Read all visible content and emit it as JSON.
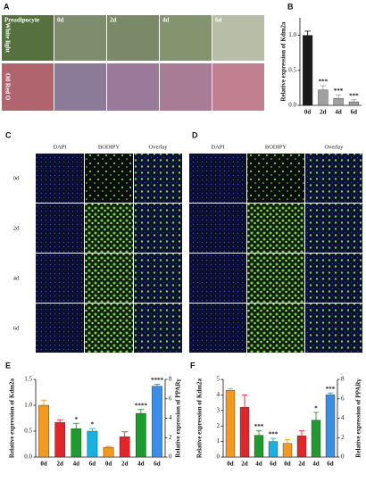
{
  "panel_a": {
    "label": "A",
    "columns": [
      "Preadipocyte",
      "0d",
      "2d",
      "4d",
      "6d"
    ],
    "rows": [
      "White light",
      "Oil Red O"
    ]
  },
  "panel_c": {
    "label": "C",
    "columns": [
      "DAPI",
      "BODIPY",
      "Overlay"
    ],
    "rows": [
      "0d",
      "2d",
      "4d",
      "6d"
    ]
  },
  "panel_d": {
    "label": "D",
    "columns": [
      "DAPI",
      "BODIPY",
      "Overlay"
    ]
  },
  "chart_data": [
    {
      "type": "bar",
      "panel": "B",
      "ylabel": "Relative expression of Kdm2a",
      "categories": [
        "0d",
        "2d",
        "4d",
        "6d"
      ],
      "series": [
        {
          "values": [
            1.0,
            0.22,
            0.1,
            0.05
          ],
          "errors": [
            0.06,
            0.06,
            0.05,
            0.03
          ],
          "colors": [
            "#1a1a1a",
            "#a0a0a0",
            "#a0a0a0",
            "#a0a0a0"
          ],
          "significance": [
            null,
            "***",
            "***",
            "***"
          ]
        }
      ],
      "ylim": [
        0,
        1.25
      ],
      "yticks": [
        {
          "value": 0,
          "label": "0.0"
        },
        {
          "value": 0.5,
          "label": "0.5"
        },
        {
          "value": 1,
          "label": "1.0"
        }
      ]
    },
    {
      "type": "bar",
      "panel": "E",
      "ylabel": "Relative expression of Kdm2a",
      "y2label": "Relative expression of PPARγ",
      "categories": [
        "0d",
        "2d",
        "4d",
        "6d",
        "0d",
        "2d",
        "4d",
        "6d"
      ],
      "series": [
        {
          "values": [
            1.0,
            0.67,
            0.55,
            0.5,
            null,
            null,
            null,
            null
          ],
          "errors": [
            0.1,
            0.05,
            0.1,
            0.05,
            null,
            null,
            null,
            null
          ],
          "colors": [
            "#f39a1e",
            "#e0262b",
            "#1e9a2e",
            "#1ab0e0",
            null,
            null,
            null,
            null
          ],
          "significance": [
            null,
            null,
            "*",
            "*",
            null,
            null,
            null,
            null
          ]
        },
        {
          "axis": "y2",
          "values": [
            null,
            null,
            null,
            null,
            1.0,
            2.1,
            4.5,
            7.3
          ],
          "errors": [
            null,
            null,
            null,
            null,
            0.1,
            0.5,
            0.4,
            0.2
          ],
          "colors": [
            null,
            null,
            null,
            null,
            "#f39a1e",
            "#e0262b",
            "#1e9a2e",
            "#3b8ee8"
          ],
          "significance": [
            null,
            null,
            null,
            null,
            null,
            null,
            "****",
            "****"
          ]
        }
      ],
      "ylim": [
        0,
        1.5
      ],
      "yticks": [
        {
          "value": 0,
          "label": "0.0"
        },
        {
          "value": 0.5,
          "label": "0.5"
        },
        {
          "value": 1,
          "label": "1.0"
        },
        {
          "value": 1.5,
          "label": "1.5"
        }
      ],
      "y2lim": [
        0,
        8
      ],
      "y2ticks": [
        0,
        2,
        4,
        6,
        8
      ]
    },
    {
      "type": "bar",
      "panel": "F",
      "ylabel": "Relative expression of Kdm2a",
      "y2label": "Relative expression of PPARγ",
      "categories": [
        "0d",
        "2d",
        "4d",
        "6d",
        "0d",
        "2d",
        "4d",
        "6d"
      ],
      "series": [
        {
          "values": [
            4.3,
            3.2,
            1.4,
            1.0,
            null,
            null,
            null,
            null
          ],
          "errors": [
            0.1,
            0.8,
            0.3,
            0.2,
            null,
            null,
            null,
            null
          ],
          "colors": [
            "#f39a1e",
            "#e0262b",
            "#1e9a2e",
            "#1ab0e0",
            null,
            null,
            null,
            null
          ],
          "significance": [
            null,
            null,
            "***",
            "***",
            null,
            null,
            null,
            null
          ]
        },
        {
          "axis": "y2",
          "values": [
            null,
            null,
            null,
            null,
            1.4,
            2.2,
            3.8,
            6.4
          ],
          "errors": [
            null,
            null,
            null,
            null,
            0.4,
            0.5,
            0.8,
            0.2
          ],
          "colors": [
            null,
            null,
            null,
            null,
            "#f39a1e",
            "#e0262b",
            "#1e9a2e",
            "#3b8ee8"
          ],
          "significance": [
            null,
            null,
            null,
            null,
            null,
            null,
            "*",
            "***"
          ]
        }
      ],
      "ylim": [
        0,
        5
      ],
      "yticks": [
        0,
        1,
        2,
        3,
        4,
        5
      ],
      "y2lim": [
        0,
        8
      ],
      "y2ticks": [
        0,
        2,
        4,
        6,
        8
      ]
    }
  ]
}
